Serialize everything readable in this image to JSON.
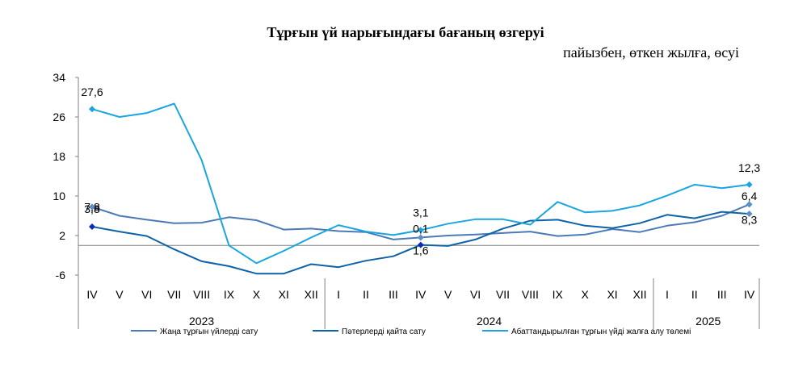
{
  "chart_data": {
    "type": "line",
    "title": "Тұрғын үй нарығындағы бағаның өзгеруі",
    "subtitle": "пайызбен, өткен жылға, өсуі",
    "xlabel": "",
    "ylabel": "",
    "ylim": [
      -6,
      34
    ],
    "yticks": [
      -6,
      2,
      10,
      18,
      26,
      34
    ],
    "grid": false,
    "legend_position": "bottom",
    "categories": [
      "IV",
      "V",
      "VI",
      "VII",
      "VIII",
      "IX",
      "X",
      "XI",
      "XII",
      "I",
      "II",
      "III",
      "IV",
      "V",
      "VI",
      "VII",
      "VIII",
      "IX",
      "X",
      "XI",
      "XII",
      "I",
      "II",
      "III",
      "IV"
    ],
    "year_groups": [
      {
        "label": "2023",
        "start": 0,
        "end": 8
      },
      {
        "label": "2024",
        "start": 9,
        "end": 20
      },
      {
        "label": "2025",
        "start": 21,
        "end": 24
      }
    ],
    "series": [
      {
        "name": "Жаңа тұрғын үйлерді сату",
        "color": "#4a7ab8",
        "values": [
          7.8,
          6.0,
          5.2,
          4.5,
          4.6,
          5.7,
          5.1,
          3.2,
          3.4,
          2.9,
          2.7,
          1.2,
          1.6,
          2.0,
          2.2,
          2.5,
          2.8,
          1.9,
          2.2,
          3.3,
          2.7,
          4.0,
          4.7,
          6.0,
          8.3
        ]
      },
      {
        "name": "Пәтерлерді қайта сату",
        "color": "#0d62a8",
        "values": [
          3.8,
          2.8,
          1.9,
          -0.8,
          -3.2,
          -4.2,
          -5.7,
          -5.7,
          -3.8,
          -4.4,
          -3.1,
          -2.2,
          0.1,
          -0.1,
          1.2,
          3.4,
          5.0,
          5.2,
          4.0,
          3.5,
          4.5,
          6.2,
          5.5,
          6.8,
          6.4
        ]
      },
      {
        "name": "Абаттандырылған тұрғын үйді жалға алу төлемі",
        "color": "#1aa5e0",
        "values": [
          27.6,
          26.0,
          26.8,
          28.7,
          17.3,
          0.0,
          -3.6,
          -1.1,
          1.6,
          4.1,
          2.8,
          2.1,
          3.1,
          4.4,
          5.3,
          5.3,
          4.2,
          8.8,
          6.7,
          7.0,
          8.1,
          10.1,
          12.3,
          11.6,
          12.3
        ]
      }
    ],
    "data_labels": [
      {
        "series": 1,
        "index": 0,
        "text": "3,8"
      },
      {
        "series": 0,
        "index": 0,
        "text": "7,8"
      },
      {
        "series": 2,
        "index": 0,
        "text": "27,6"
      },
      {
        "series": 2,
        "index": 12,
        "text": "3,1"
      },
      {
        "series": 1,
        "index": 12,
        "text": "0,1"
      },
      {
        "series": 0,
        "index": 12,
        "text": "1,6"
      },
      {
        "series": 2,
        "index": 24,
        "text": "12,3"
      },
      {
        "series": 1,
        "index": 24,
        "text": "6,4"
      },
      {
        "series": 0,
        "index": 24,
        "text": "8,3"
      }
    ]
  }
}
